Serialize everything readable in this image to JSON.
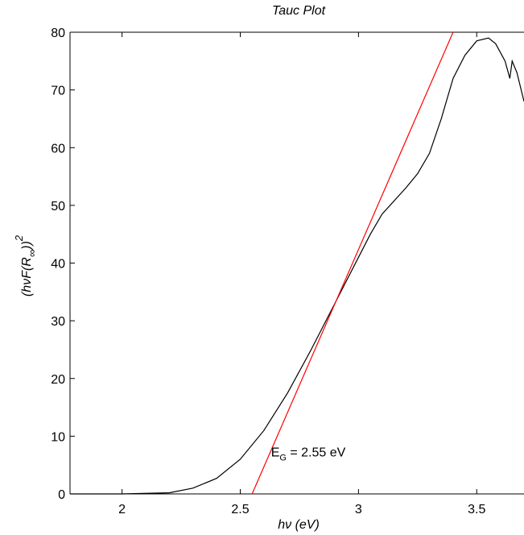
{
  "chart_data": {
    "type": "line",
    "title": "Tauc Plot",
    "xlabel": {
      "main": "hν",
      "unit": "(eV)"
    },
    "ylabel": {
      "main": "(hνF(R",
      "sub": "∞",
      "end": "))",
      "sup": "2"
    },
    "annotation": {
      "main": "E",
      "sub": "G",
      "rest": " = 2.55 eV",
      "x": 2.63,
      "y": 6.5
    },
    "xlim": [
      1.78,
      3.7
    ],
    "ylim": [
      0,
      80
    ],
    "xticks": [
      2,
      2.5,
      3,
      3.5
    ],
    "yticks": [
      0,
      10,
      20,
      30,
      40,
      50,
      60,
      70,
      80
    ],
    "series": [
      {
        "color": "#000000",
        "x": [
          1.78,
          2.0,
          2.2,
          2.3,
          2.4,
          2.5,
          2.6,
          2.7,
          2.8,
          2.9,
          3.0,
          3.05,
          3.1,
          3.2,
          3.25,
          3.3,
          3.35,
          3.4,
          3.45,
          3.5,
          3.55,
          3.58,
          3.62,
          3.64,
          3.65,
          3.67,
          3.7
        ],
        "values": [
          0,
          0,
          0.2,
          1,
          2.7,
          6,
          11,
          17.5,
          25,
          33,
          41,
          45,
          48.5,
          53,
          55.5,
          59,
          65,
          72,
          76,
          78.5,
          79,
          78,
          75,
          72,
          75,
          73,
          68
        ]
      },
      {
        "color": "#ff0000",
        "x": [
          2.55,
          3.4
        ],
        "values": [
          0,
          80
        ]
      }
    ]
  }
}
